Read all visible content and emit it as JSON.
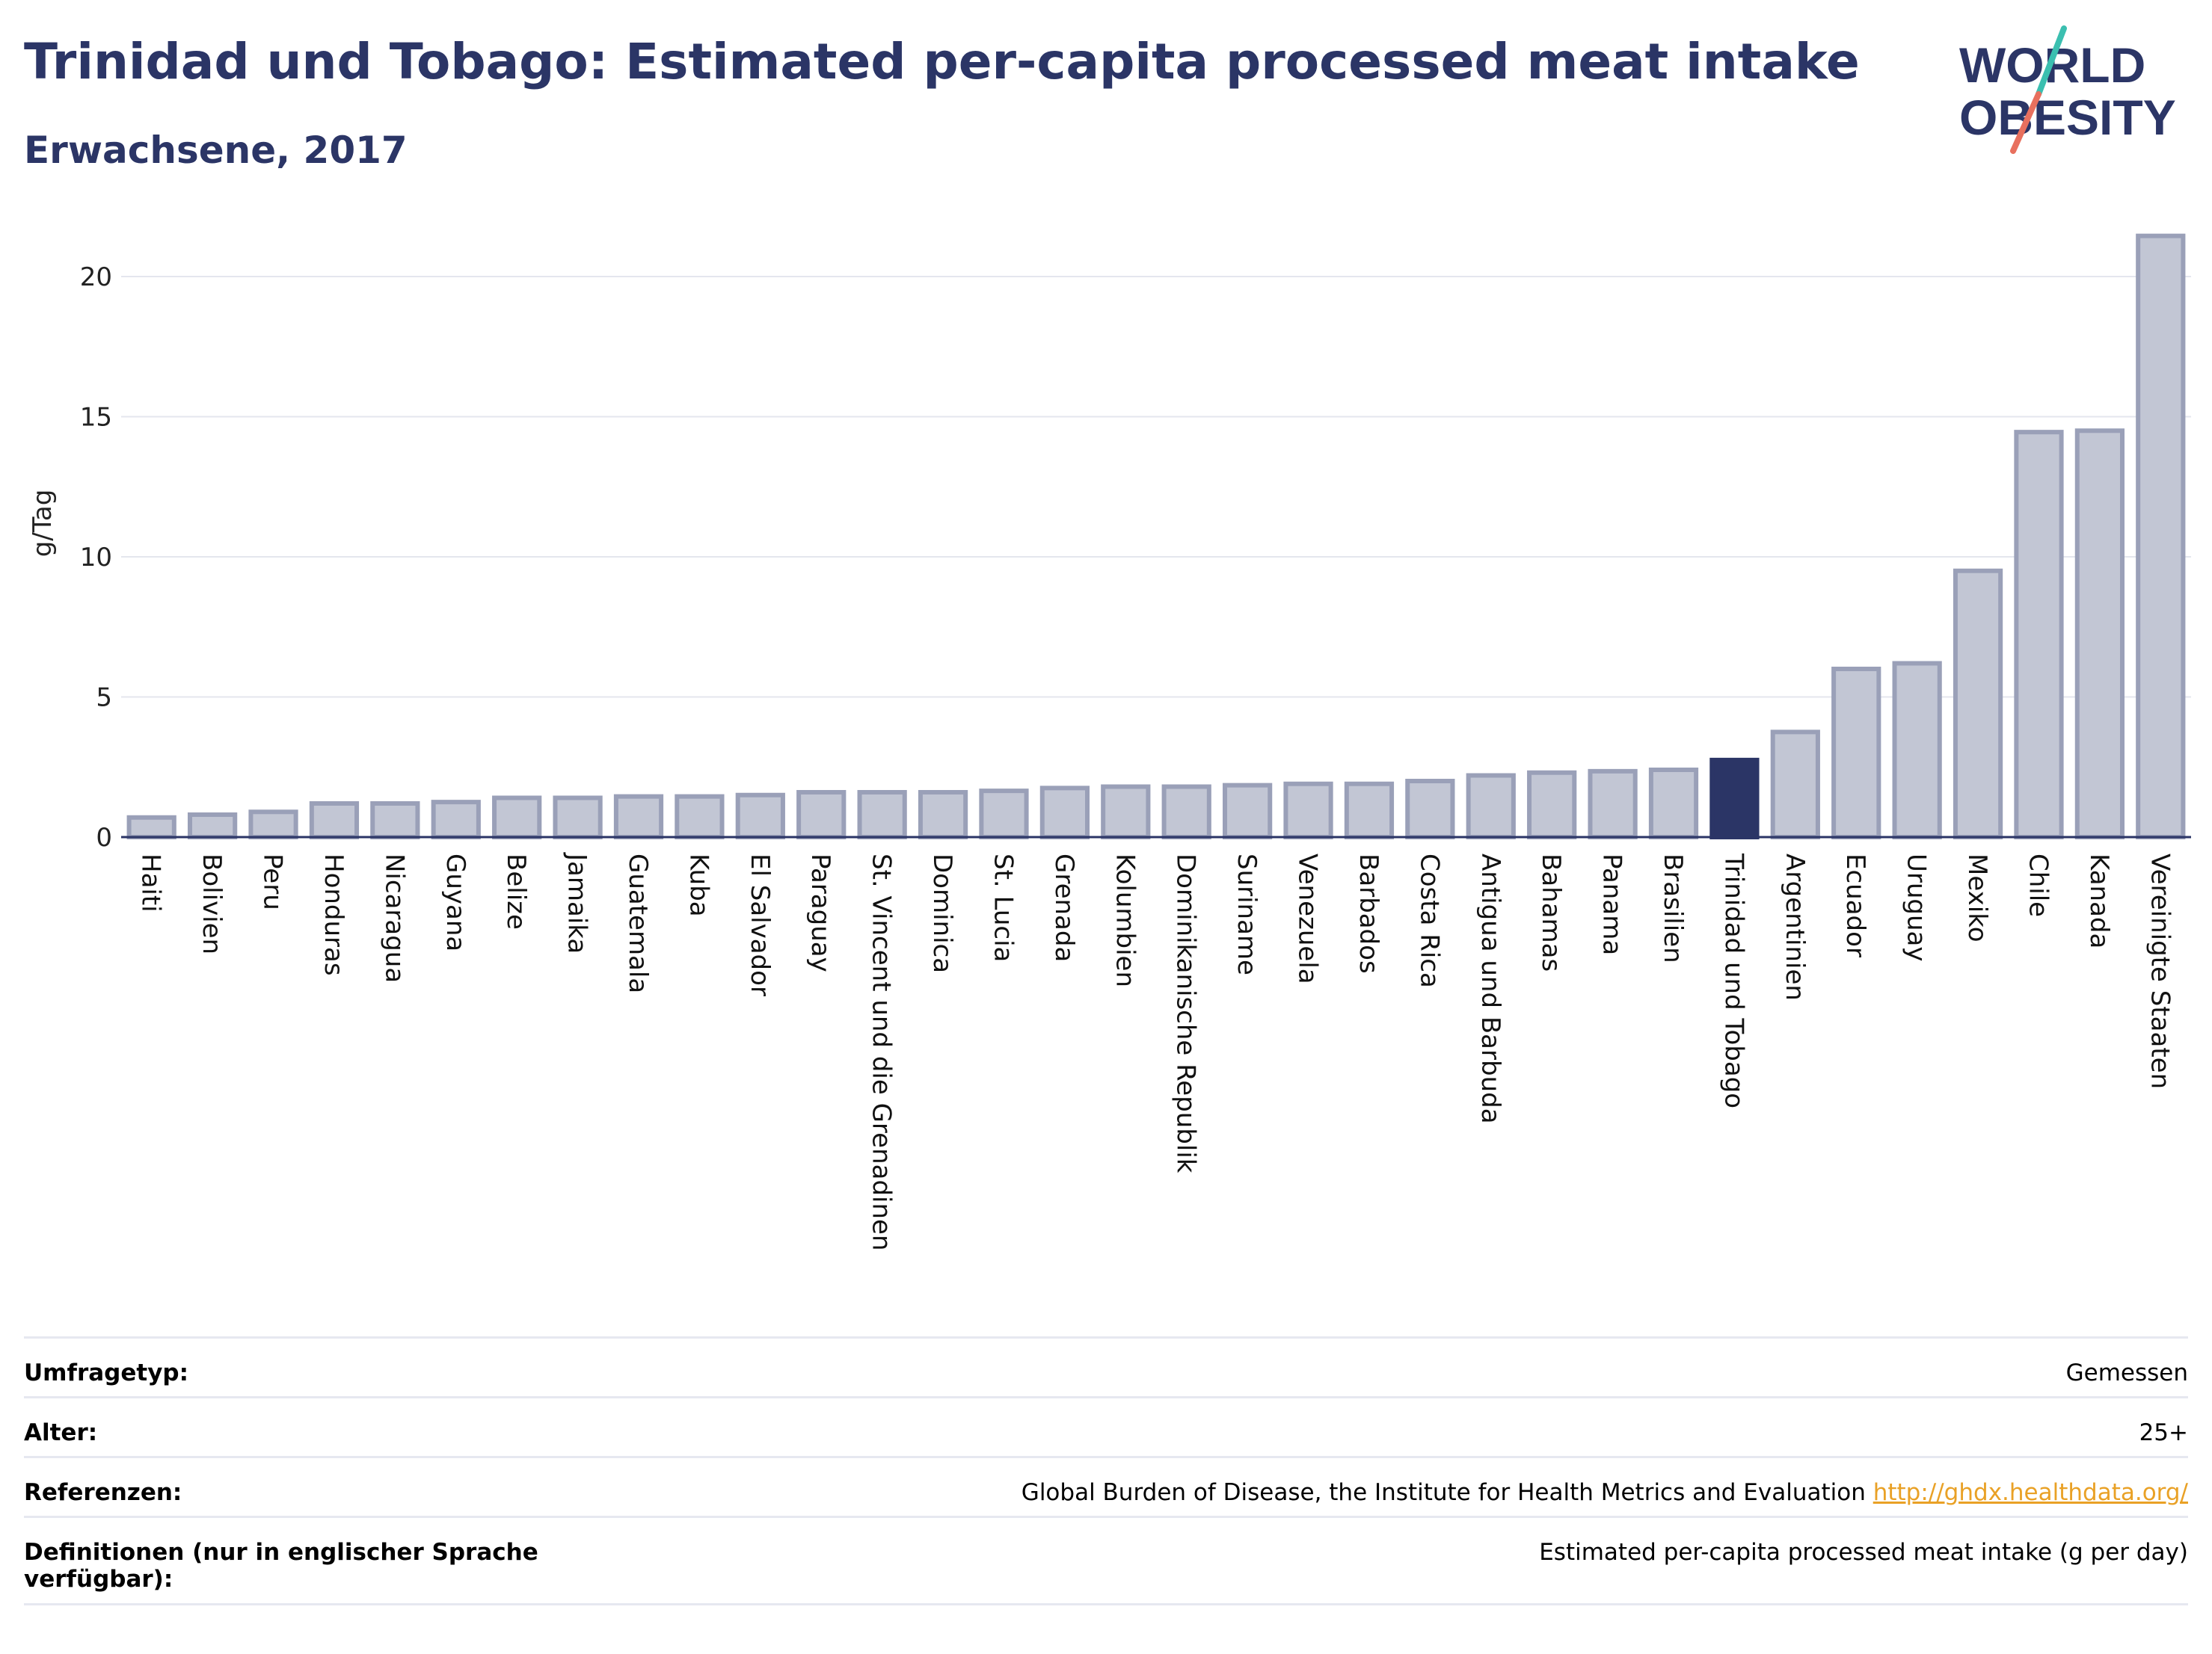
{
  "header": {
    "title": "Trinidad und Tobago: Estimated per-capita processed meat intake",
    "subtitle": "Erwachsene, 2017"
  },
  "logo": {
    "line1": "WORLD",
    "line2": "OBESITY"
  },
  "colors": {
    "title": "#2b3566",
    "highlight_bar": "#2b3566",
    "other_bar_fill": "#c2c6d4",
    "other_bar_stroke": "#9aa0b8",
    "logo_slash_teal": "#3bbfb0",
    "logo_slash_coral": "#e8705e",
    "link": "#e9a126"
  },
  "chart_data": {
    "type": "bar",
    "ylabel": "g/Tag",
    "ylim": [
      0,
      22
    ],
    "yticks": [
      0,
      5,
      10,
      15,
      20
    ],
    "grid": true,
    "highlight": "Trinidad und Tobago",
    "categories": [
      "Haiti",
      "Bolivien",
      "Peru",
      "Honduras",
      "Nicaragua",
      "Guyana",
      "Belize",
      "Jamaika",
      "Guatemala",
      "Kuba",
      "El Salvador",
      "Paraguay",
      "St. Vincent und die Grenadinen",
      "Dominica",
      "St. Lucia",
      "Grenada",
      "Kolumbien",
      "Dominikanische Republik",
      "Suriname",
      "Venezuela",
      "Barbados",
      "Costa Rica",
      "Antigua und Barbuda",
      "Bahamas",
      "Panama",
      "Brasilien",
      "Trinidad und Tobago",
      "Argentinien",
      "Ecuador",
      "Uruguay",
      "Mexiko",
      "Chile",
      "Kanada",
      "Vereinigte Staaten"
    ],
    "values": [
      0.7,
      0.8,
      0.9,
      1.2,
      1.2,
      1.25,
      1.4,
      1.4,
      1.45,
      1.45,
      1.5,
      1.6,
      1.6,
      1.6,
      1.65,
      1.75,
      1.8,
      1.8,
      1.85,
      1.9,
      1.9,
      2.0,
      2.2,
      2.3,
      2.35,
      2.4,
      2.75,
      3.75,
      6.0,
      6.2,
      9.5,
      14.45,
      14.5,
      21.45
    ]
  },
  "info": {
    "rows": [
      {
        "label": "Umfragetyp:",
        "value": "Gemessen"
      },
      {
        "label": "Alter:",
        "value": "25+"
      },
      {
        "label": "Referenzen:",
        "value": "Global Burden of Disease, the Institute for Health Metrics and Evaluation",
        "link": "http://ghdx.healthdata.org/"
      },
      {
        "label": "Definitionen (nur in englischer Sprache verfügbar):",
        "value": "Estimated per-capita processed meat intake (g per day)"
      }
    ]
  }
}
